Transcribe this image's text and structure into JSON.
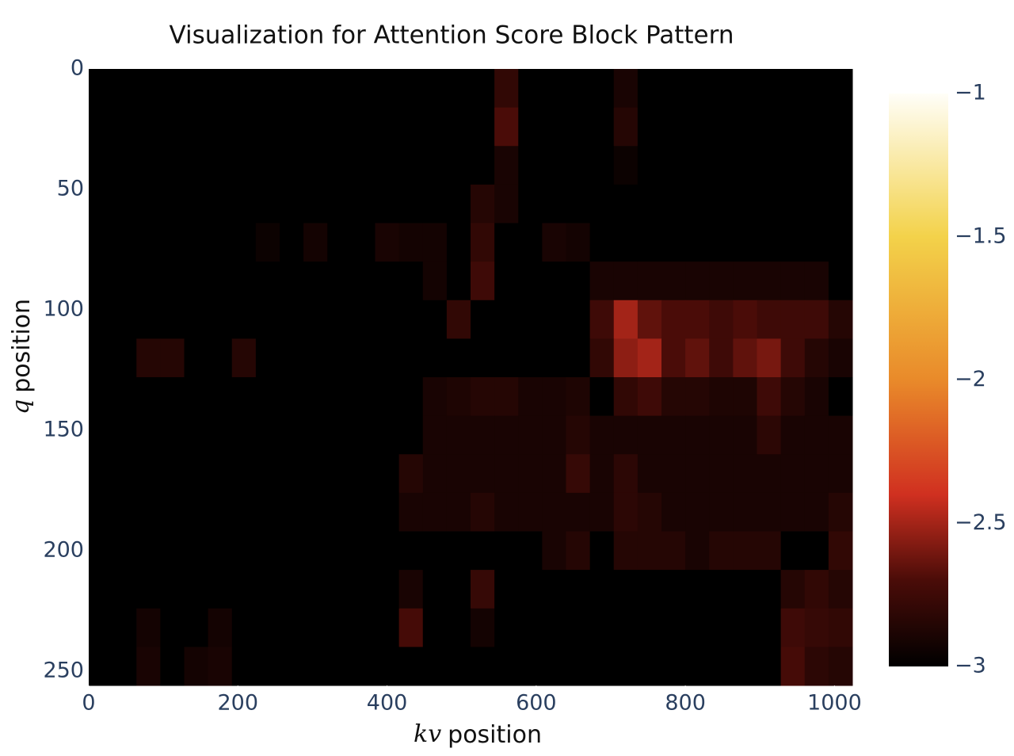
{
  "chart_data": {
    "type": "heatmap",
    "title": "Visualization for Attention Score Block Pattern",
    "x_label_var": "kv",
    "x_label": "position",
    "y_label_var": "q",
    "y_label": "position",
    "xlim": [
      0,
      1024
    ],
    "ylim": [
      256,
      0
    ],
    "y_reversed": true,
    "xticks": [
      0,
      200,
      400,
      600,
      800,
      1000
    ],
    "yticks": [
      0,
      50,
      100,
      150,
      200,
      250
    ],
    "xbins": [
      0,
      32,
      64,
      96,
      128,
      160,
      192,
      224,
      256,
      288,
      320,
      352,
      384,
      416,
      448,
      480,
      512,
      544,
      576,
      608,
      640,
      672,
      704,
      736,
      768,
      800,
      832,
      864,
      896,
      928,
      960,
      992,
      1024
    ],
    "ybins": [
      0,
      16,
      32,
      48,
      64,
      80,
      96,
      112,
      128,
      144,
      160,
      176,
      192,
      208,
      224,
      240,
      256
    ],
    "zlim": [
      -3,
      -1
    ],
    "zticks": [
      {
        "value": -1,
        "label": "−1"
      },
      {
        "value": -1.5,
        "label": "−1.5"
      },
      {
        "value": -2,
        "label": "−2"
      },
      {
        "value": -2.5,
        "label": "−2.5"
      },
      {
        "value": -3,
        "label": "−3"
      }
    ],
    "colorscale": [
      [
        0,
        "#000000"
      ],
      [
        0.15,
        "#4a0c08"
      ],
      [
        0.3,
        "#d03020"
      ],
      [
        0.5,
        "#e98a2a"
      ],
      [
        0.75,
        "#f3d24a"
      ],
      [
        1,
        "#fffef8"
      ]
    ],
    "z": [
      [
        -3,
        -3,
        -3,
        -3,
        -3,
        -3,
        -3,
        -3,
        -3,
        -3,
        -3,
        -3,
        -3,
        -3,
        -3,
        -3,
        -3,
        -2.8,
        -3,
        -3,
        -3,
        -3,
        -2.9,
        -3,
        -3,
        -3,
        -3,
        -3,
        -3,
        -3,
        -3,
        -3
      ],
      [
        -3,
        -3,
        -3,
        -3,
        -3,
        -3,
        -3,
        -3,
        -3,
        -3,
        -3,
        -3,
        -3,
        -3,
        -3,
        -3,
        -3,
        -2.7,
        -3,
        -3,
        -3,
        -3,
        -2.85,
        -3,
        -3,
        -3,
        -3,
        -3,
        -3,
        -3,
        -3,
        -3
      ],
      [
        -3,
        -3,
        -3,
        -3,
        -3,
        -3,
        -3,
        -3,
        -3,
        -3,
        -3,
        -3,
        -3,
        -3,
        -3,
        -3,
        -3,
        -2.9,
        -3,
        -3,
        -3,
        -3,
        -2.95,
        -3,
        -3,
        -3,
        -3,
        -3,
        -3,
        -3,
        -3,
        -3
      ],
      [
        -3,
        -3,
        -3,
        -3,
        -3,
        -3,
        -3,
        -3,
        -3,
        -3,
        -3,
        -3,
        -3,
        -3,
        -3,
        -3,
        -2.85,
        -2.9,
        -3,
        -3,
        -3,
        -3,
        -3,
        -3,
        -3,
        -3,
        -3,
        -3,
        -3,
        -3,
        -3,
        -3
      ],
      [
        -3,
        -3,
        -3,
        -3,
        -3,
        -3,
        -3,
        -2.95,
        -3,
        -2.92,
        -3,
        -3,
        -2.9,
        -2.92,
        -2.92,
        -3,
        -2.8,
        -3,
        -3,
        -2.9,
        -2.92,
        -3,
        -3,
        -3,
        -3,
        -3,
        -3,
        -3,
        -3,
        -3,
        -3,
        -3
      ],
      [
        -3,
        -3,
        -3,
        -3,
        -3,
        -3,
        -3,
        -3,
        -3,
        -3,
        -3,
        -3,
        -3,
        -3,
        -2.92,
        -3,
        -2.75,
        -3,
        -3,
        -3,
        -3,
        -2.9,
        -2.9,
        -2.9,
        -2.9,
        -2.9,
        -2.9,
        -2.9,
        -2.9,
        -2.9,
        -2.9,
        -3
      ],
      [
        -3,
        -3,
        -3,
        -3,
        -3,
        -3,
        -3,
        -3,
        -3,
        -3,
        -3,
        -3,
        -3,
        -3,
        -3,
        -2.8,
        -3,
        -3,
        -3,
        -3,
        -3,
        -2.75,
        -2.5,
        -2.65,
        -2.7,
        -2.7,
        -2.75,
        -2.7,
        -2.75,
        -2.75,
        -2.75,
        -2.85
      ],
      [
        -3,
        -3,
        -2.85,
        -2.85,
        -3,
        -3,
        -2.85,
        -3,
        -3,
        -3,
        -3,
        -3,
        -3,
        -3,
        -3,
        -3,
        -3,
        -3,
        -3,
        -3,
        -3,
        -2.8,
        -2.55,
        -2.5,
        -2.7,
        -2.65,
        -2.75,
        -2.65,
        -2.6,
        -2.75,
        -2.85,
        -2.9
      ],
      [
        -3,
        -3,
        -3,
        -3,
        -3,
        -3,
        -3,
        -3,
        -3,
        -3,
        -3,
        -3,
        -3,
        -3,
        -2.9,
        -2.88,
        -2.85,
        -2.85,
        -2.9,
        -2.9,
        -2.88,
        -3,
        -2.8,
        -2.75,
        -2.85,
        -2.85,
        -2.88,
        -2.88,
        -2.75,
        -2.85,
        -2.9,
        -3
      ],
      [
        -3,
        -3,
        -3,
        -3,
        -3,
        -3,
        -3,
        -3,
        -3,
        -3,
        -3,
        -3,
        -3,
        -3,
        -2.9,
        -2.9,
        -2.9,
        -2.9,
        -2.9,
        -2.9,
        -2.85,
        -2.9,
        -2.9,
        -2.9,
        -2.9,
        -2.9,
        -2.9,
        -2.9,
        -2.82,
        -2.9,
        -2.9,
        -2.9
      ],
      [
        -3,
        -3,
        -3,
        -3,
        -3,
        -3,
        -3,
        -3,
        -3,
        -3,
        -3,
        -3,
        -3,
        -2.85,
        -2.9,
        -2.9,
        -2.9,
        -2.9,
        -2.9,
        -2.9,
        -2.78,
        -2.9,
        -2.82,
        -2.9,
        -2.9,
        -2.9,
        -2.9,
        -2.9,
        -2.9,
        -2.9,
        -2.9,
        -2.9
      ],
      [
        -3,
        -3,
        -3,
        -3,
        -3,
        -3,
        -3,
        -3,
        -3,
        -3,
        -3,
        -3,
        -3,
        -2.9,
        -2.9,
        -2.9,
        -2.85,
        -2.9,
        -2.9,
        -2.9,
        -2.9,
        -2.9,
        -2.82,
        -2.85,
        -2.9,
        -2.9,
        -2.9,
        -2.9,
        -2.9,
        -2.9,
        -2.9,
        -2.85
      ],
      [
        -3,
        -3,
        -3,
        -3,
        -3,
        -3,
        -3,
        -3,
        -3,
        -3,
        -3,
        -3,
        -3,
        -3,
        -3,
        -3,
        -3,
        -3,
        -3,
        -2.9,
        -2.85,
        -3,
        -2.85,
        -2.85,
        -2.85,
        -2.9,
        -2.85,
        -2.85,
        -2.85,
        -3,
        -3,
        -2.8
      ],
      [
        -3,
        -3,
        -3,
        -3,
        -3,
        -3,
        -3,
        -3,
        -3,
        -3,
        -3,
        -3,
        -3,
        -2.9,
        -3,
        -3,
        -2.78,
        -3,
        -3,
        -3,
        -3,
        -3,
        -3,
        -3,
        -3,
        -3,
        -3,
        -3,
        -3,
        -2.85,
        -2.8,
        -2.85
      ],
      [
        -3,
        -3,
        -2.92,
        -3,
        -3,
        -2.92,
        -3,
        -3,
        -3,
        -3,
        -3,
        -3,
        -3,
        -2.72,
        -3,
        -3,
        -2.92,
        -3,
        -3,
        -3,
        -3,
        -3,
        -3,
        -3,
        -3,
        -3,
        -3,
        -3,
        -3,
        -2.75,
        -2.78,
        -2.8
      ],
      [
        -3,
        -3,
        -2.9,
        -3,
        -2.92,
        -2.9,
        -3,
        -3,
        -3,
        -3,
        -3,
        -3,
        -3,
        -3,
        -3,
        -3,
        -3,
        -3,
        -3,
        -3,
        -3,
        -3,
        -3,
        -3,
        -3,
        -3,
        -3,
        -3,
        -3,
        -2.72,
        -2.82,
        -2.85
      ]
    ]
  }
}
